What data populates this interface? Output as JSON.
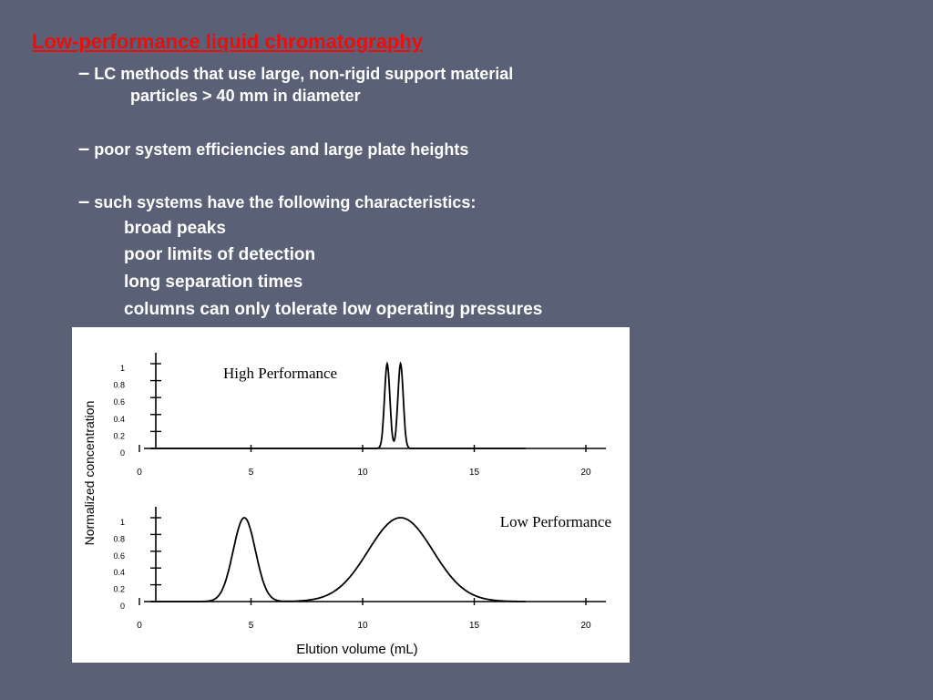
{
  "slide": {
    "title": "Low-performance liquid chromatography",
    "bullets": [
      {
        "dash": "–",
        "text": "LC methods that use large, non-rigid support material"
      },
      {
        "dash": "",
        "text": "particles > 40 mm in diameter"
      },
      {
        "dash": "–",
        "text": "poor system efficiencies and large plate heights"
      },
      {
        "dash": "–",
        "text": "such systems have the following characteristics:"
      }
    ],
    "characteristics": [
      "broad peaks",
      "poor limits of detection",
      "long separation times",
      "columns can only tolerate low operating pressures"
    ]
  },
  "colors": {
    "background": "#5a6176",
    "title": "#ee0c0c",
    "text": "#ffffff",
    "chart_line": "#000000"
  },
  "chart_data": [
    {
      "type": "line",
      "title": "High Performance",
      "xlabel": "",
      "ylabel": "Normalized concentration",
      "xlim": [
        0,
        20
      ],
      "ylim": [
        0,
        1
      ],
      "x_ticks": [
        0,
        5,
        10,
        15,
        20
      ],
      "y_ticks": [
        0,
        0.2,
        0.4,
        0.6,
        0.8,
        1
      ],
      "x_tick_labels": [
        "0",
        "5",
        "10",
        "15",
        "20"
      ],
      "y_tick_labels": [
        "0",
        "0.2",
        "0.4",
        "0.6",
        "0.8",
        "1"
      ],
      "series": [
        {
          "peaks": [
            {
              "center": 11.1,
              "height": 1.0,
              "sigma": 0.12
            },
            {
              "center": 11.7,
              "height": 1.0,
              "sigma": 0.12
            }
          ]
        }
      ],
      "grid": false
    },
    {
      "type": "line",
      "title": "Low Performance",
      "xlabel": "Elution volume (mL)",
      "ylabel": "Normalized concentration",
      "xlim": [
        0,
        20
      ],
      "ylim": [
        0,
        1
      ],
      "x_ticks": [
        0,
        5,
        10,
        15,
        20
      ],
      "y_ticks": [
        0,
        0.2,
        0.4,
        0.6,
        0.8,
        1
      ],
      "x_tick_labels": [
        "0",
        "5",
        "10",
        "15",
        "20"
      ],
      "y_tick_labels": [
        "0",
        "0.2",
        "0.4",
        "0.6",
        "0.8",
        "1"
      ],
      "series": [
        {
          "peaks": [
            {
              "center": 4.7,
              "height": 1.0,
              "sigma": 0.5
            },
            {
              "center": 11.7,
              "height": 1.0,
              "sigma": 1.45
            }
          ]
        }
      ],
      "grid": false
    }
  ]
}
